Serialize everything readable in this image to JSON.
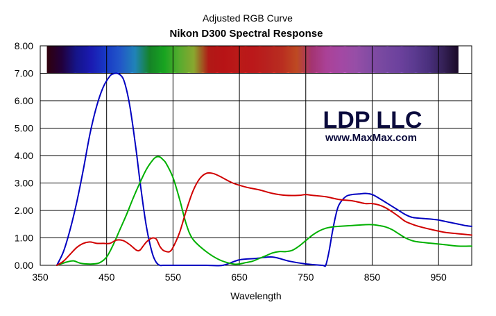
{
  "chart_data": {
    "type": "line",
    "title": "Adjusted RGB Curve",
    "subtitle": "Nikon D300 Spectral Response",
    "xlabel": "Wavelength",
    "ylabel": "",
    "xlim": [
      350,
      1000
    ],
    "ylim": [
      0,
      8
    ],
    "x_ticks": [
      350,
      450,
      550,
      650,
      750,
      850,
      950
    ],
    "y_ticks": [
      0,
      1,
      2,
      3,
      4,
      5,
      6,
      7,
      8
    ],
    "y_tick_labels": [
      "0.00",
      "1.00",
      "2.00",
      "3.00",
      "4.00",
      "5.00",
      "6.00",
      "7.00",
      "8.00"
    ],
    "grid": true,
    "legend": "none",
    "annotations": [
      {
        "text": "LDP LLC",
        "role": "watermark-title"
      },
      {
        "text": "www.MaxMax.com",
        "role": "watermark-url"
      }
    ],
    "spectrum_strip": {
      "x_range": [
        360,
        980
      ],
      "y_range": [
        7.0,
        8.0
      ],
      "colors": [
        "#3a0010",
        "#2a0048",
        "#1a1aa8",
        "#2020d8",
        "#1e46f0",
        "#2a6af5",
        "#28a0e0",
        "#1aa030",
        "#1ec828",
        "#6ad23a",
        "#a8cc3a",
        "#d8201c",
        "#e0181c",
        "#e2201e",
        "#e41e20",
        "#e02a26",
        "#e23828",
        "#e85a2a",
        "#c8408a",
        "#d050b8",
        "#c858c8",
        "#b860cc",
        "#a05cc8",
        "#9058c4",
        "#8450c0",
        "#7048b0",
        "#5a3a98",
        "#402868",
        "#200c30"
      ]
    },
    "series": [
      {
        "color": "#0000c0",
        "x": [
          375,
          385,
          395,
          405,
          415,
          425,
          435,
          445,
          455,
          460,
          465,
          470,
          475,
          480,
          485,
          490,
          495,
          500,
          505,
          510,
          515,
          520,
          525,
          530,
          535,
          550,
          575,
          600,
          625,
          650,
          675,
          700,
          725,
          750,
          775,
          780,
          785,
          790,
          795,
          800,
          810,
          820,
          830,
          840,
          850,
          860,
          870,
          880,
          890,
          900,
          910,
          920,
          930,
          940,
          950,
          960,
          970,
          980,
          990,
          1000
        ],
        "y": [
          0.0,
          0.5,
          1.3,
          2.3,
          3.5,
          4.8,
          5.8,
          6.5,
          6.9,
          6.98,
          7.0,
          6.95,
          6.8,
          6.4,
          5.8,
          5.0,
          4.1,
          3.1,
          2.2,
          1.4,
          0.8,
          0.35,
          0.1,
          0.0,
          0.0,
          0.0,
          0.0,
          0.0,
          0.0,
          0.2,
          0.25,
          0.3,
          0.15,
          0.05,
          0.0,
          0.0,
          0.5,
          1.2,
          1.8,
          2.2,
          2.5,
          2.58,
          2.6,
          2.62,
          2.58,
          2.45,
          2.3,
          2.15,
          2.0,
          1.85,
          1.75,
          1.72,
          1.7,
          1.68,
          1.65,
          1.6,
          1.55,
          1.5,
          1.45,
          1.42
        ]
      },
      {
        "color": "#00b000",
        "x": [
          375,
          390,
          400,
          410,
          420,
          430,
          440,
          450,
          460,
          470,
          480,
          490,
          500,
          510,
          520,
          525,
          530,
          535,
          540,
          550,
          560,
          570,
          580,
          600,
          620,
          640,
          650,
          660,
          670,
          680,
          690,
          700,
          710,
          720,
          730,
          740,
          750,
          760,
          770,
          780,
          790,
          800,
          820,
          840,
          850,
          860,
          870,
          880,
          890,
          900,
          910,
          920,
          940,
          960,
          980,
          1000
        ],
        "y": [
          0.0,
          0.12,
          0.16,
          0.08,
          0.05,
          0.05,
          0.1,
          0.3,
          0.75,
          1.3,
          1.85,
          2.45,
          3.0,
          3.5,
          3.85,
          3.95,
          3.95,
          3.85,
          3.7,
          3.2,
          2.4,
          1.5,
          0.95,
          0.5,
          0.2,
          0.05,
          0.05,
          0.1,
          0.15,
          0.25,
          0.35,
          0.45,
          0.5,
          0.5,
          0.55,
          0.7,
          0.9,
          1.1,
          1.25,
          1.35,
          1.4,
          1.42,
          1.45,
          1.48,
          1.48,
          1.45,
          1.4,
          1.3,
          1.15,
          1.0,
          0.9,
          0.85,
          0.8,
          0.75,
          0.7,
          0.7
        ]
      },
      {
        "color": "#d00000",
        "x": [
          375,
          385,
          395,
          405,
          415,
          425,
          435,
          445,
          455,
          465,
          475,
          485,
          495,
          500,
          505,
          510,
          515,
          520,
          525,
          530,
          535,
          540,
          545,
          550,
          560,
          570,
          580,
          590,
          600,
          610,
          620,
          640,
          660,
          680,
          700,
          720,
          740,
          750,
          760,
          780,
          800,
          820,
          830,
          840,
          850,
          860,
          870,
          880,
          890,
          900,
          910,
          920,
          940,
          960,
          980,
          1000
        ],
        "y": [
          0.0,
          0.15,
          0.4,
          0.65,
          0.8,
          0.85,
          0.8,
          0.8,
          0.8,
          0.92,
          0.9,
          0.75,
          0.55,
          0.55,
          0.7,
          0.85,
          0.95,
          1.0,
          0.95,
          0.7,
          0.55,
          0.5,
          0.5,
          0.65,
          1.2,
          2.0,
          2.7,
          3.15,
          3.35,
          3.35,
          3.25,
          3.0,
          2.85,
          2.75,
          2.62,
          2.55,
          2.55,
          2.58,
          2.55,
          2.5,
          2.4,
          2.35,
          2.3,
          2.25,
          2.25,
          2.2,
          2.1,
          1.95,
          1.78,
          1.6,
          1.5,
          1.42,
          1.3,
          1.2,
          1.15,
          1.1
        ]
      }
    ]
  },
  "watermark": {
    "title": "LDP LLC",
    "url": "www.MaxMax.com"
  },
  "colors": {
    "grid": "#000000",
    "plot_background": "#ffffff",
    "watermark": "#0a0a3c"
  }
}
